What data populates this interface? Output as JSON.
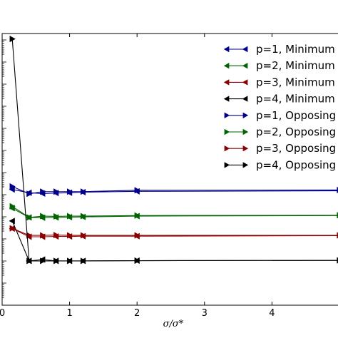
{
  "chart_data": {
    "type": "line",
    "xlabel": "σ/σ*",
    "ylabel": "",
    "xlim": [
      0,
      5
    ],
    "ylim": [
      0,
      1
    ],
    "x_ticks": [
      0,
      1,
      2,
      3,
      4
    ],
    "x_tick_labels": [
      "0",
      "1",
      "2",
      "3",
      "4"
    ],
    "grid": false,
    "legend_position": "top-right",
    "series": [
      {
        "name": "p=1, Minimum",
        "color": "#00008b",
        "marker": "left-triangle",
        "x": [
          0.15,
          0.4,
          0.6,
          0.8,
          1.0,
          1.2,
          2.0,
          5.0
        ],
        "y": [
          0.426,
          0.414,
          0.411,
          0.413,
          0.414,
          0.416,
          0.419,
          0.421
        ]
      },
      {
        "name": "p=2, Minimum",
        "color": "#006400",
        "marker": "left-triangle",
        "x": [
          0.15,
          0.4,
          0.6,
          0.8,
          1.0,
          1.2,
          2.0,
          5.0
        ],
        "y": [
          0.357,
          0.323,
          0.322,
          0.323,
          0.324,
          0.325,
          0.328,
          0.33
        ]
      },
      {
        "name": "p=3, Minimum",
        "color": "#8b0000",
        "marker": "left-triangle",
        "x": [
          0.15,
          0.4,
          0.6,
          0.8,
          1.0,
          1.2,
          2.0,
          5.0
        ],
        "y": [
          0.282,
          0.252,
          0.252,
          0.253,
          0.253,
          0.254,
          0.254,
          0.256
        ]
      },
      {
        "name": "p=4, Minimum",
        "color": "#000000",
        "marker": "left-triangle",
        "x": [
          0.15,
          0.4,
          0.6,
          0.8,
          1.0,
          1.2,
          2.0,
          5.0
        ],
        "y": [
          0.31,
          0.163,
          0.168,
          0.163,
          0.163,
          0.163,
          0.164,
          0.165
        ]
      },
      {
        "name": "p=1, Opposing",
        "color": "#00008b",
        "marker": "right-triangle",
        "x": [
          0.15,
          0.4,
          0.6,
          0.8,
          1.0,
          1.2,
          2.0,
          5.0
        ],
        "y": [
          0.437,
          0.41,
          0.418,
          0.418,
          0.418,
          0.418,
          0.423,
          0.424
        ]
      },
      {
        "name": "p=2, Opposing",
        "color": "#006400",
        "marker": "right-triangle",
        "x": [
          0.15,
          0.4,
          0.6,
          0.8,
          1.0,
          1.2,
          2.0,
          5.0
        ],
        "y": [
          0.364,
          0.323,
          0.328,
          0.327,
          0.328,
          0.328,
          0.33,
          0.331
        ]
      },
      {
        "name": "p=3, Opposing",
        "color": "#8b0000",
        "marker": "right-triangle",
        "x": [
          0.15,
          0.4,
          0.6,
          0.8,
          1.0,
          1.2,
          2.0,
          5.0
        ],
        "y": [
          0.283,
          0.257,
          0.257,
          0.258,
          0.257,
          0.257,
          0.257,
          0.257
        ]
      },
      {
        "name": "p=4, Opposing",
        "color": "#000000",
        "marker": "right-triangle",
        "x": [
          0.15,
          0.4,
          0.6,
          0.8,
          1.0,
          1.2,
          2.0,
          5.0
        ],
        "y": [
          0.98,
          0.163,
          0.163,
          0.163,
          0.163,
          0.163,
          0.164,
          0.165
        ]
      }
    ]
  }
}
